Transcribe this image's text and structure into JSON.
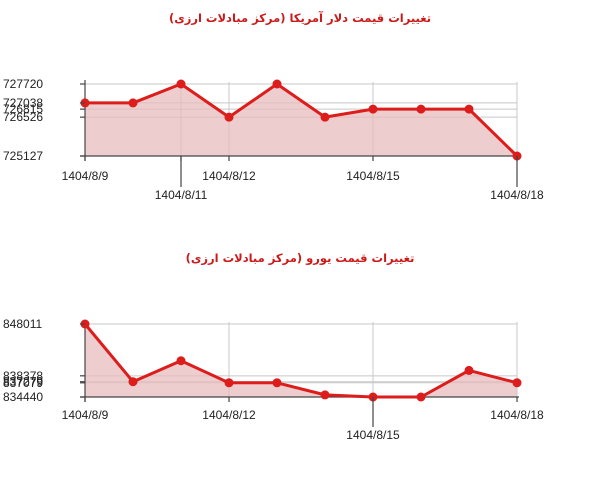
{
  "chart_data": [
    {
      "type": "area",
      "title": "تغییرات قیمت دلار آمریکا (مرکز مبادلات ارزی)",
      "x": [
        "1404/8/9",
        "1404/8/10",
        "1404/8/11",
        "1404/8/12",
        "1404/8/13",
        "1404/8/14",
        "1404/8/15",
        "1404/8/16",
        "1404/8/17",
        "1404/8/18"
      ],
      "values": [
        727038,
        727038,
        727720,
        726526,
        727720,
        726526,
        726815,
        726815,
        726815,
        725127
      ],
      "ylim": [
        725127,
        727720
      ],
      "y_ticks": [
        727720,
        727038,
        726815,
        726526,
        725127
      ],
      "y_tick_labels": [
        "727720",
        "727038",
        "726815",
        "726526",
        "725127"
      ],
      "x_tick_labels": [
        {
          "label": "1404/8/9",
          "index": 0,
          "row": "upper"
        },
        {
          "label": "1404/8/11",
          "index": 2,
          "row": "lower"
        },
        {
          "label": "1404/8/12",
          "index": 3,
          "row": "upper"
        },
        {
          "label": "1404/8/15",
          "index": 6,
          "row": "upper"
        },
        {
          "label": "1404/8/18",
          "index": 9,
          "row": "lower"
        }
      ],
      "grid": true,
      "color": "#dd1c1c",
      "fill_color": "#e7bcbc"
    },
    {
      "type": "area",
      "title": "تغییرات قیمت یورو (مرکز مبادلات ارزی)",
      "x": [
        "1404/8/9",
        "1404/8/10",
        "1404/8/11",
        "1404/8/12",
        "1404/8/13",
        "1404/8/14",
        "1404/8/15",
        "1404/8/16",
        "1404/8/17",
        "1404/8/18"
      ],
      "values": [
        848011,
        837279,
        841179,
        837079,
        837079,
        834834,
        834440,
        834440,
        839379,
        837079
      ],
      "ylim": [
        834440,
        848011
      ],
      "y_ticks": [
        848011,
        838378,
        837279,
        837079,
        834440
      ],
      "y_tick_labels": [
        "848011",
        "838378",
        "837279",
        "837079",
        "834440"
      ],
      "x_tick_labels": [
        {
          "label": "1404/8/9",
          "index": 0,
          "row": "upper"
        },
        {
          "label": "1404/8/12",
          "index": 3,
          "row": "upper"
        },
        {
          "label": "1404/8/15",
          "index": 6,
          "row": "lower"
        },
        {
          "label": "1404/8/18",
          "index": 9,
          "row": "upper"
        }
      ],
      "grid": true,
      "color": "#dd1c1c",
      "fill_color": "#e7bcbc"
    }
  ]
}
